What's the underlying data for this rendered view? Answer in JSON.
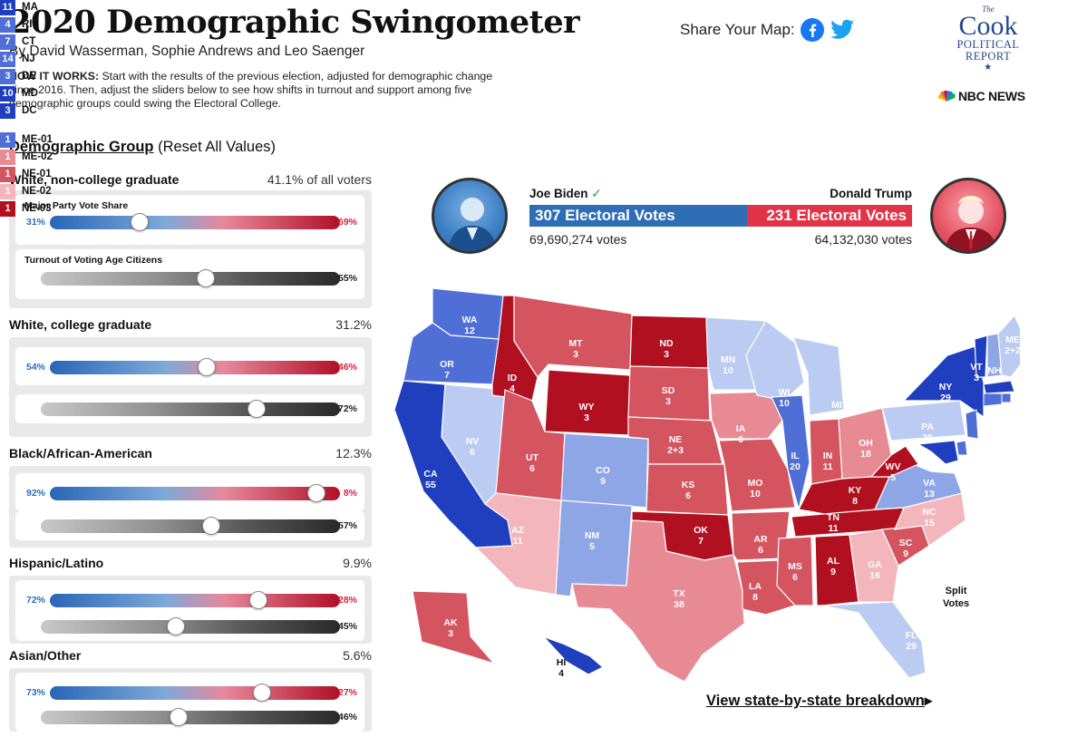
{
  "header": {
    "title": "2020 Demographic Swingometer",
    "byline": "By David Wasserman, Sophie Andrews and Leo Saenger",
    "how_label": "HOW IT WORKS:",
    "how_text": " Start with the results of the previous election, adjusted for demographic change since 2016. Then, adjust the sliders below to see how shifts in turnout and support among five demographic groups could swing the Electoral College."
  },
  "share": {
    "label": "Share Your Map:",
    "icons": [
      "facebook-icon",
      "twitter-icon"
    ]
  },
  "branding": {
    "cook_the": "The",
    "cook_big": "Cook",
    "cook_line1": "POLITICAL",
    "cook_line2": "REPORT",
    "star": "★",
    "nbc": "NBC NEWS"
  },
  "demographics": {
    "heading": "Demographic Group",
    "reset": " (Reset All Values)",
    "vote_share_label": "Major Party Vote Share",
    "turnout_label": "Turnout of Voting Age Citizens",
    "groups": [
      {
        "name": "White, non-college graduate",
        "share": "41.1%",
        "share_suffix": " of all voters",
        "dem": "31%",
        "rep": "69%",
        "dem_frac": 0.31,
        "turnout": "55%",
        "turnout_frac": 0.55,
        "show_labels": true
      },
      {
        "name": "White, college graduate",
        "share": "31.2%",
        "share_suffix": "",
        "dem": "54%",
        "rep": "46%",
        "dem_frac": 0.54,
        "turnout": "72%",
        "turnout_frac": 0.72,
        "show_labels": false
      },
      {
        "name": "Black/African-American",
        "share": "12.3%",
        "share_suffix": "",
        "dem": "92%",
        "rep": "8%",
        "dem_frac": 0.92,
        "turnout": "57%",
        "turnout_frac": 0.57,
        "show_labels": false
      },
      {
        "name": "Hispanic/Latino",
        "share": "9.9%",
        "share_suffix": "",
        "dem": "72%",
        "rep": "28%",
        "dem_frac": 0.72,
        "turnout": "45%",
        "turnout_frac": 0.45,
        "show_labels": false
      },
      {
        "name": "Asian/Other",
        "share": "5.6%",
        "share_suffix": "",
        "dem": "73%",
        "rep": "27%",
        "dem_frac": 0.73,
        "turnout": "46%",
        "turnout_frac": 0.46,
        "show_labels": false
      }
    ]
  },
  "results": {
    "biden": {
      "name": "Joe Biden",
      "check": "✓",
      "ev_text": "307 Electoral Votes",
      "ev": 307,
      "votes": "69,690,274 votes"
    },
    "trump": {
      "name": "Donald Trump",
      "ev_text": "231 Electoral Votes",
      "ev": 231,
      "votes": "64,132,030 votes"
    }
  },
  "colors": {
    "safe_d": "#1f3fbf",
    "likely_d": "#4f6fd6",
    "lean_d": "#8fa6e6",
    "tilt_d": "#bccbf2",
    "tilt_r": "#f2b6bc",
    "lean_r": "#e88a93",
    "likely_r": "#d4545f",
    "safe_r": "#b0101f"
  },
  "states": [
    {
      "abbr": "WA",
      "ev": "12",
      "rating": "likely_d"
    },
    {
      "abbr": "OR",
      "ev": "7",
      "rating": "likely_d"
    },
    {
      "abbr": "CA",
      "ev": "55",
      "rating": "safe_d"
    },
    {
      "abbr": "NV",
      "ev": "6",
      "rating": "tilt_d"
    },
    {
      "abbr": "ID",
      "ev": "4",
      "rating": "safe_r"
    },
    {
      "abbr": "MT",
      "ev": "3",
      "rating": "likely_r"
    },
    {
      "abbr": "WY",
      "ev": "3",
      "rating": "safe_r"
    },
    {
      "abbr": "UT",
      "ev": "6",
      "rating": "likely_r"
    },
    {
      "abbr": "AZ",
      "ev": "11",
      "rating": "tilt_r"
    },
    {
      "abbr": "CO",
      "ev": "9",
      "rating": "lean_d"
    },
    {
      "abbr": "NM",
      "ev": "5",
      "rating": "lean_d"
    },
    {
      "abbr": "ND",
      "ev": "3",
      "rating": "safe_r"
    },
    {
      "abbr": "SD",
      "ev": "3",
      "rating": "likely_r"
    },
    {
      "abbr": "NE",
      "ev": "2+3",
      "rating": "likely_r"
    },
    {
      "abbr": "KS",
      "ev": "6",
      "rating": "likely_r"
    },
    {
      "abbr": "OK",
      "ev": "7",
      "rating": "safe_r"
    },
    {
      "abbr": "TX",
      "ev": "38",
      "rating": "lean_r"
    },
    {
      "abbr": "MN",
      "ev": "10",
      "rating": "tilt_d"
    },
    {
      "abbr": "IA",
      "ev": "6",
      "rating": "lean_r"
    },
    {
      "abbr": "MO",
      "ev": "10",
      "rating": "likely_r"
    },
    {
      "abbr": "AR",
      "ev": "6",
      "rating": "likely_r"
    },
    {
      "abbr": "LA",
      "ev": "8",
      "rating": "likely_r"
    },
    {
      "abbr": "WI",
      "ev": "10",
      "rating": "tilt_d"
    },
    {
      "abbr": "IL",
      "ev": "20",
      "rating": "likely_d"
    },
    {
      "abbr": "MI",
      "ev": "16",
      "rating": "tilt_d"
    },
    {
      "abbr": "IN",
      "ev": "11",
      "rating": "likely_r"
    },
    {
      "abbr": "OH",
      "ev": "18",
      "rating": "lean_r"
    },
    {
      "abbr": "KY",
      "ev": "8",
      "rating": "safe_r"
    },
    {
      "abbr": "TN",
      "ev": "11",
      "rating": "safe_r"
    },
    {
      "abbr": "MS",
      "ev": "6",
      "rating": "likely_r"
    },
    {
      "abbr": "AL",
      "ev": "9",
      "rating": "safe_r"
    },
    {
      "abbr": "GA",
      "ev": "16",
      "rating": "tilt_r"
    },
    {
      "abbr": "FL",
      "ev": "29",
      "rating": "tilt_d"
    },
    {
      "abbr": "SC",
      "ev": "9",
      "rating": "likely_r"
    },
    {
      "abbr": "NC",
      "ev": "15",
      "rating": "tilt_r"
    },
    {
      "abbr": "VA",
      "ev": "13",
      "rating": "lean_d"
    },
    {
      "abbr": "WV",
      "ev": "5",
      "rating": "safe_r"
    },
    {
      "abbr": "PA",
      "ev": "20",
      "rating": "tilt_d"
    },
    {
      "abbr": "NY",
      "ev": "29",
      "rating": "safe_d"
    },
    {
      "abbr": "VT",
      "ev": "3",
      "rating": "safe_d"
    },
    {
      "abbr": "NH",
      "ev": "4",
      "rating": "lean_d"
    },
    {
      "abbr": "ME",
      "ev": "2+2",
      "rating": "tilt_d"
    },
    {
      "abbr": "AK",
      "ev": "3",
      "rating": "likely_r"
    },
    {
      "abbr": "HI",
      "ev": "4",
      "rating": "safe_d"
    }
  ],
  "small_states": [
    {
      "ev": "11",
      "abbr": "MA",
      "rating": "safe_d"
    },
    {
      "ev": "4",
      "abbr": "RI",
      "rating": "likely_d"
    },
    {
      "ev": "7",
      "abbr": "CT",
      "rating": "likely_d"
    },
    {
      "ev": "14",
      "abbr": "NJ",
      "rating": "likely_d"
    },
    {
      "ev": "3",
      "abbr": "DE",
      "rating": "likely_d"
    },
    {
      "ev": "10",
      "abbr": "MD",
      "rating": "safe_d"
    },
    {
      "ev": "3",
      "abbr": "DC",
      "rating": "safe_d"
    }
  ],
  "split_votes": {
    "label_line1": "Split",
    "label_line2": "Votes",
    "items": [
      {
        "ev": "1",
        "abbr": "ME-01",
        "rating": "likely_d"
      },
      {
        "ev": "1",
        "abbr": "ME-02",
        "rating": "lean_r"
      },
      {
        "ev": "1",
        "abbr": "NE-01",
        "rating": "likely_r"
      },
      {
        "ev": "1",
        "abbr": "NE-02",
        "rating": "tilt_r"
      },
      {
        "ev": "1",
        "abbr": "NE-03",
        "rating": "safe_r"
      }
    ]
  },
  "footer": {
    "view_link": "View state-by-state breakdown",
    "arrow": "▸"
  }
}
